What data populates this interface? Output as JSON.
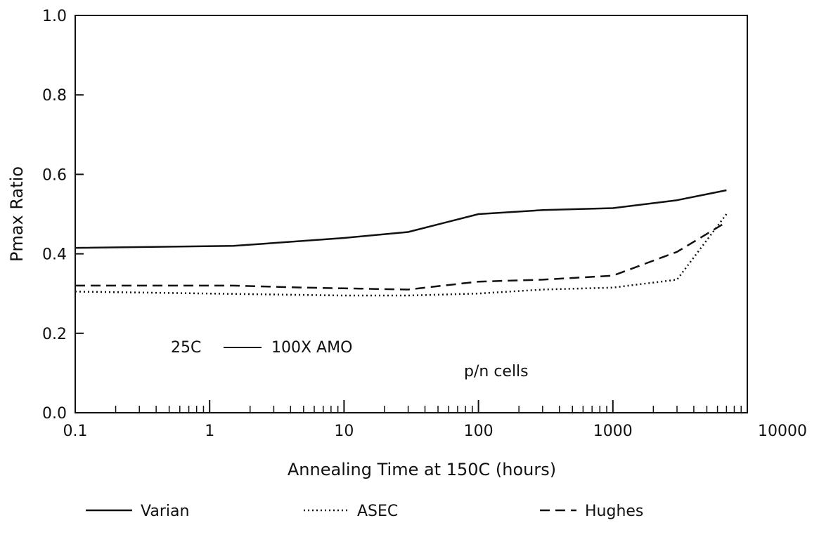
{
  "chart_data": {
    "type": "line",
    "xlabel": "Annealing Time at 150C (hours)",
    "ylabel": "Pmax Ratio",
    "x_scale": "log",
    "xlim": [
      0.1,
      10000
    ],
    "ylim": [
      0.0,
      1.0
    ],
    "x_ticks": [
      {
        "value": 0.1,
        "label": "0.1"
      },
      {
        "value": 1,
        "label": "1"
      },
      {
        "value": 10,
        "label": "10"
      },
      {
        "value": 100,
        "label": "100"
      },
      {
        "value": 1000,
        "label": "1000"
      },
      {
        "value": 10000,
        "label": "10000"
      }
    ],
    "y_ticks": [
      {
        "value": 0.0,
        "label": "0.0"
      },
      {
        "value": 0.2,
        "label": "0.2"
      },
      {
        "value": 0.4,
        "label": "0.4"
      },
      {
        "value": 0.6,
        "label": "0.6"
      },
      {
        "value": 0.8,
        "label": "0.8"
      },
      {
        "value": 1.0,
        "label": "1.0"
      }
    ],
    "annotations": [
      "25C",
      "100X AMO",
      "p/n cells"
    ],
    "legend_placement": "bottom",
    "grid": false,
    "series": [
      {
        "name": "Varian",
        "style": "solid",
        "x": [
          0.1,
          1.5,
          10,
          30,
          100,
          300,
          1000,
          3000,
          7000
        ],
        "y": [
          0.415,
          0.42,
          0.44,
          0.455,
          0.5,
          0.51,
          0.515,
          0.535,
          0.56
        ]
      },
      {
        "name": "ASEC",
        "style": "dotted",
        "x": [
          0.1,
          1,
          10,
          30,
          100,
          300,
          1000,
          3000,
          7000
        ],
        "y": [
          0.305,
          0.3,
          0.295,
          0.295,
          0.3,
          0.31,
          0.315,
          0.335,
          0.5
        ]
      },
      {
        "name": "Hughes",
        "style": "dashed",
        "x": [
          0.1,
          1.5,
          5,
          30,
          100,
          300,
          1000,
          3000,
          7000
        ],
        "y": [
          0.32,
          0.32,
          0.315,
          0.31,
          0.33,
          0.335,
          0.345,
          0.405,
          0.48
        ]
      }
    ]
  }
}
